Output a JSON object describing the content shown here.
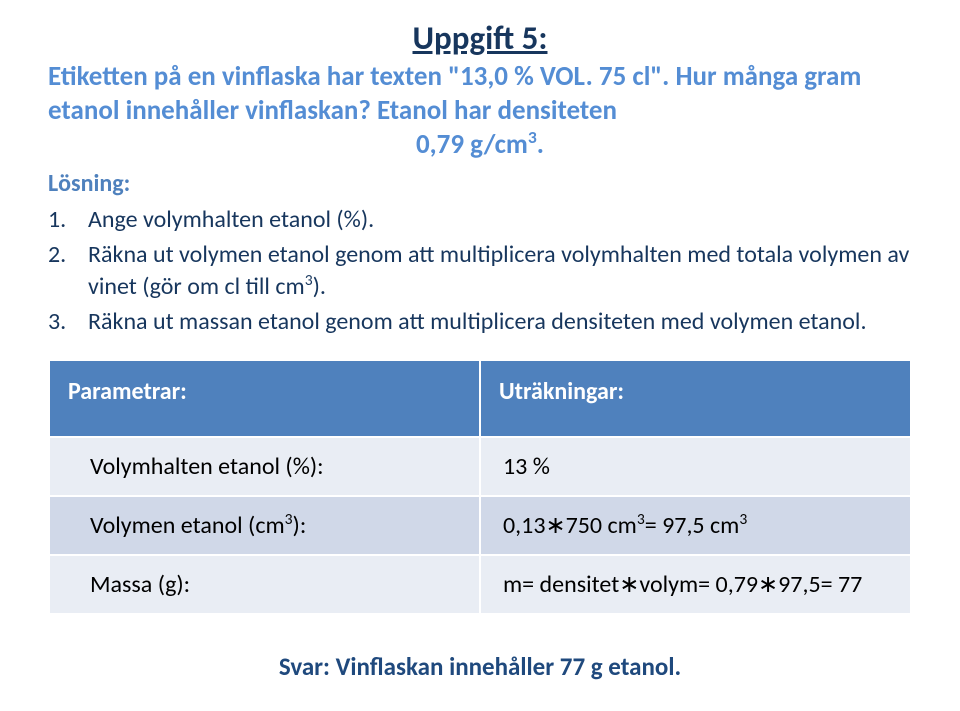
{
  "colors": {
    "title": "#17365d",
    "problem": "#548dd4",
    "losning": "#4f81bd",
    "steps": "#17365d",
    "table_header_bg": "#4f81bd",
    "table_header_fg": "#ffffff",
    "row_bg": "#e9edf4",
    "row_alt_bg": "#d0d8e8",
    "answer": "#1f497d",
    "background": "#ffffff"
  },
  "title": "Uppgift 5:",
  "problem": {
    "line1": "Etiketten på en vinflaska har texten \"13,0 % VOL. 75 cl\". Hur många gram etanol innehåller vinflaskan? Etanol har densiteten",
    "density_html": "0,79 g/cm<sup>3</sup>."
  },
  "losning_label": "Lösning:",
  "steps": [
    {
      "n": "1.",
      "html": "Ange volymhalten etanol (%)."
    },
    {
      "n": "2.",
      "html": "Räkna ut volymen etanol genom att multiplicera volymhalten med totala volymen av vinet (gör om cl till cm<sup>3</sup>)."
    },
    {
      "n": "3.",
      "html": "Räkna ut massan etanol genom att multiplicera densiteten med volymen etanol."
    }
  ],
  "table": {
    "headers": {
      "left": "Parametrar:",
      "right": "Uträkningar:"
    },
    "rows": [
      {
        "param_html": "Volymhalten etanol (%):",
        "value_html": "13 %"
      },
      {
        "param_html": "Volymen etanol (cm<sup>3</sup>):",
        "value_html": "0,13∗750 cm<sup>3</sup>= 97,5 cm<sup>3</sup>"
      },
      {
        "param_html": "Massa (g):",
        "value_html": "m= densitet∗volym= 0,79∗97,5= 77"
      }
    ]
  },
  "answer": "Svar: Vinflaskan innehåller 77 g etanol."
}
